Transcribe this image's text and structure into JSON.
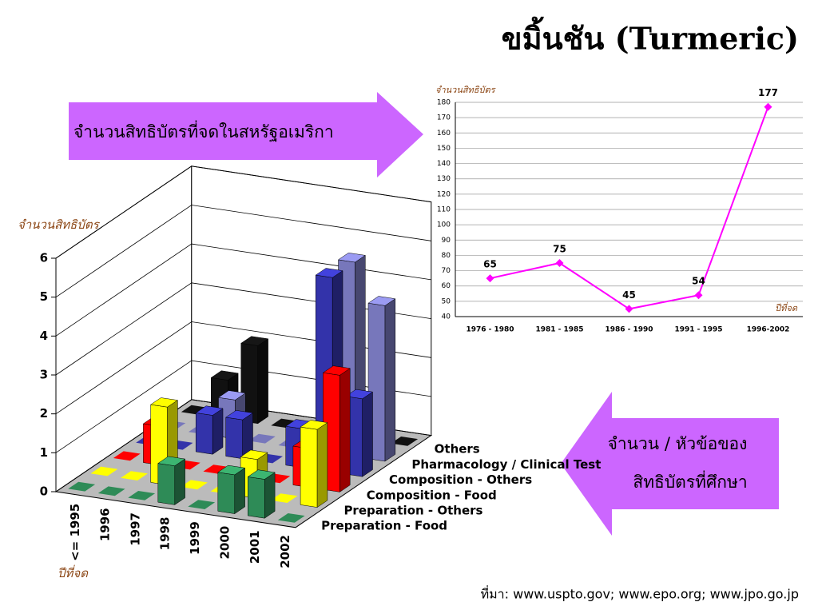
{
  "title": "ขมิ้นชัน (Turmeric)",
  "callouts": [
    [
      "จำนวนสิทธิบัตรที่จดในสหรัฐอเมริกา"
    ],
    [
      "จำนวน / หัวข้อของ",
      "สิทธิบัตรที่ศึกษา"
    ]
  ],
  "source": "ที่มา: www.uspto.gov; www.epo.org; www.jpo.go.jp",
  "chart_data": [
    {
      "type": "bar3d",
      "ylabel": "จำนวนสิทธิบัตร",
      "xlabel": "ปีที่จด",
      "categories": [
        "<= 1995",
        "1996",
        "1997",
        "1998",
        "1999",
        "2000",
        "2001",
        "2002"
      ],
      "ylim": [
        0,
        6
      ],
      "yticks": [
        0,
        1,
        2,
        3,
        4,
        5,
        6
      ],
      "grid": true,
      "series": [
        {
          "name": "Preparation - Food",
          "color": "#2e8b57",
          "values": [
            0,
            0,
            0,
            1,
            0,
            1,
            1,
            0
          ]
        },
        {
          "name": "Preparation - Others",
          "color": "#ffff00",
          "values": [
            0,
            0,
            2,
            0,
            0,
            1,
            0,
            2
          ]
        },
        {
          "name": "Composition - Food",
          "color": "#ff0000",
          "values": [
            0,
            1,
            0,
            0,
            0,
            0,
            1,
            3
          ]
        },
        {
          "name": "Composition - Others",
          "color": "#3333aa",
          "values": [
            0,
            0,
            1,
            1,
            0,
            1,
            5,
            2
          ]
        },
        {
          "name": "Pharmacology / Clinical Test",
          "color": "#7777bb",
          "values": [
            0,
            0,
            1,
            0,
            0,
            0,
            5,
            4
          ]
        },
        {
          "name": "Others",
          "color": "#111111",
          "values": [
            0,
            1,
            2,
            0,
            0,
            1,
            0,
            0
          ]
        }
      ]
    },
    {
      "type": "line",
      "ylabel": "จำนวนสิทธิบัตร",
      "xlabel": "ปีที่จด",
      "categories": [
        "1976 - 1980",
        "1981 - 1985",
        "1986 - 1990",
        "1991 - 1995",
        "1996-2002"
      ],
      "values": [
        65,
        75,
        45,
        54,
        177
      ],
      "color": "#ff00ff",
      "ylim": [
        40,
        180
      ],
      "yticks": [
        40,
        50,
        60,
        70,
        80,
        90,
        100,
        110,
        120,
        130,
        140,
        150,
        160,
        170,
        180
      ],
      "grid": true
    }
  ]
}
